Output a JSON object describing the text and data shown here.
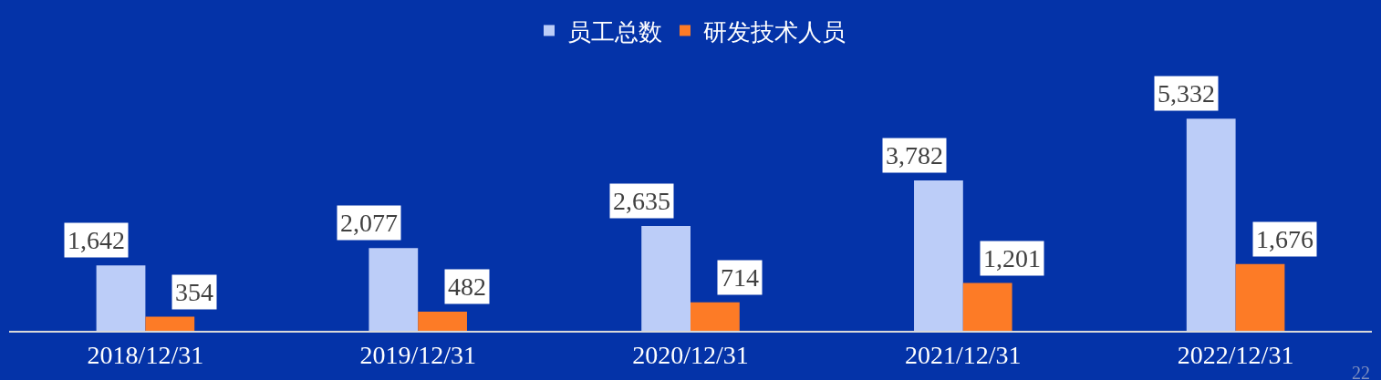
{
  "chart_data": {
    "type": "bar",
    "categories": [
      "2018/12/31",
      "2019/12/31",
      "2020/12/31",
      "2021/12/31",
      "2022/12/31"
    ],
    "series": [
      {
        "name": "员工总数",
        "color": "#bccdf8",
        "values": [
          1642,
          2077,
          2635,
          3782,
          5332
        ],
        "value_labels": [
          "1,642",
          "2,077",
          "2,635",
          "3,782",
          "5,332"
        ]
      },
      {
        "name": "研发技术人员",
        "color": "#fd7b26",
        "values": [
          354,
          482,
          714,
          1201,
          1676
        ],
        "value_labels": [
          "354",
          "482",
          "714",
          "1,201",
          "1,676"
        ]
      }
    ],
    "legend": "top",
    "grid": false,
    "annotations": [
      "22"
    ]
  }
}
